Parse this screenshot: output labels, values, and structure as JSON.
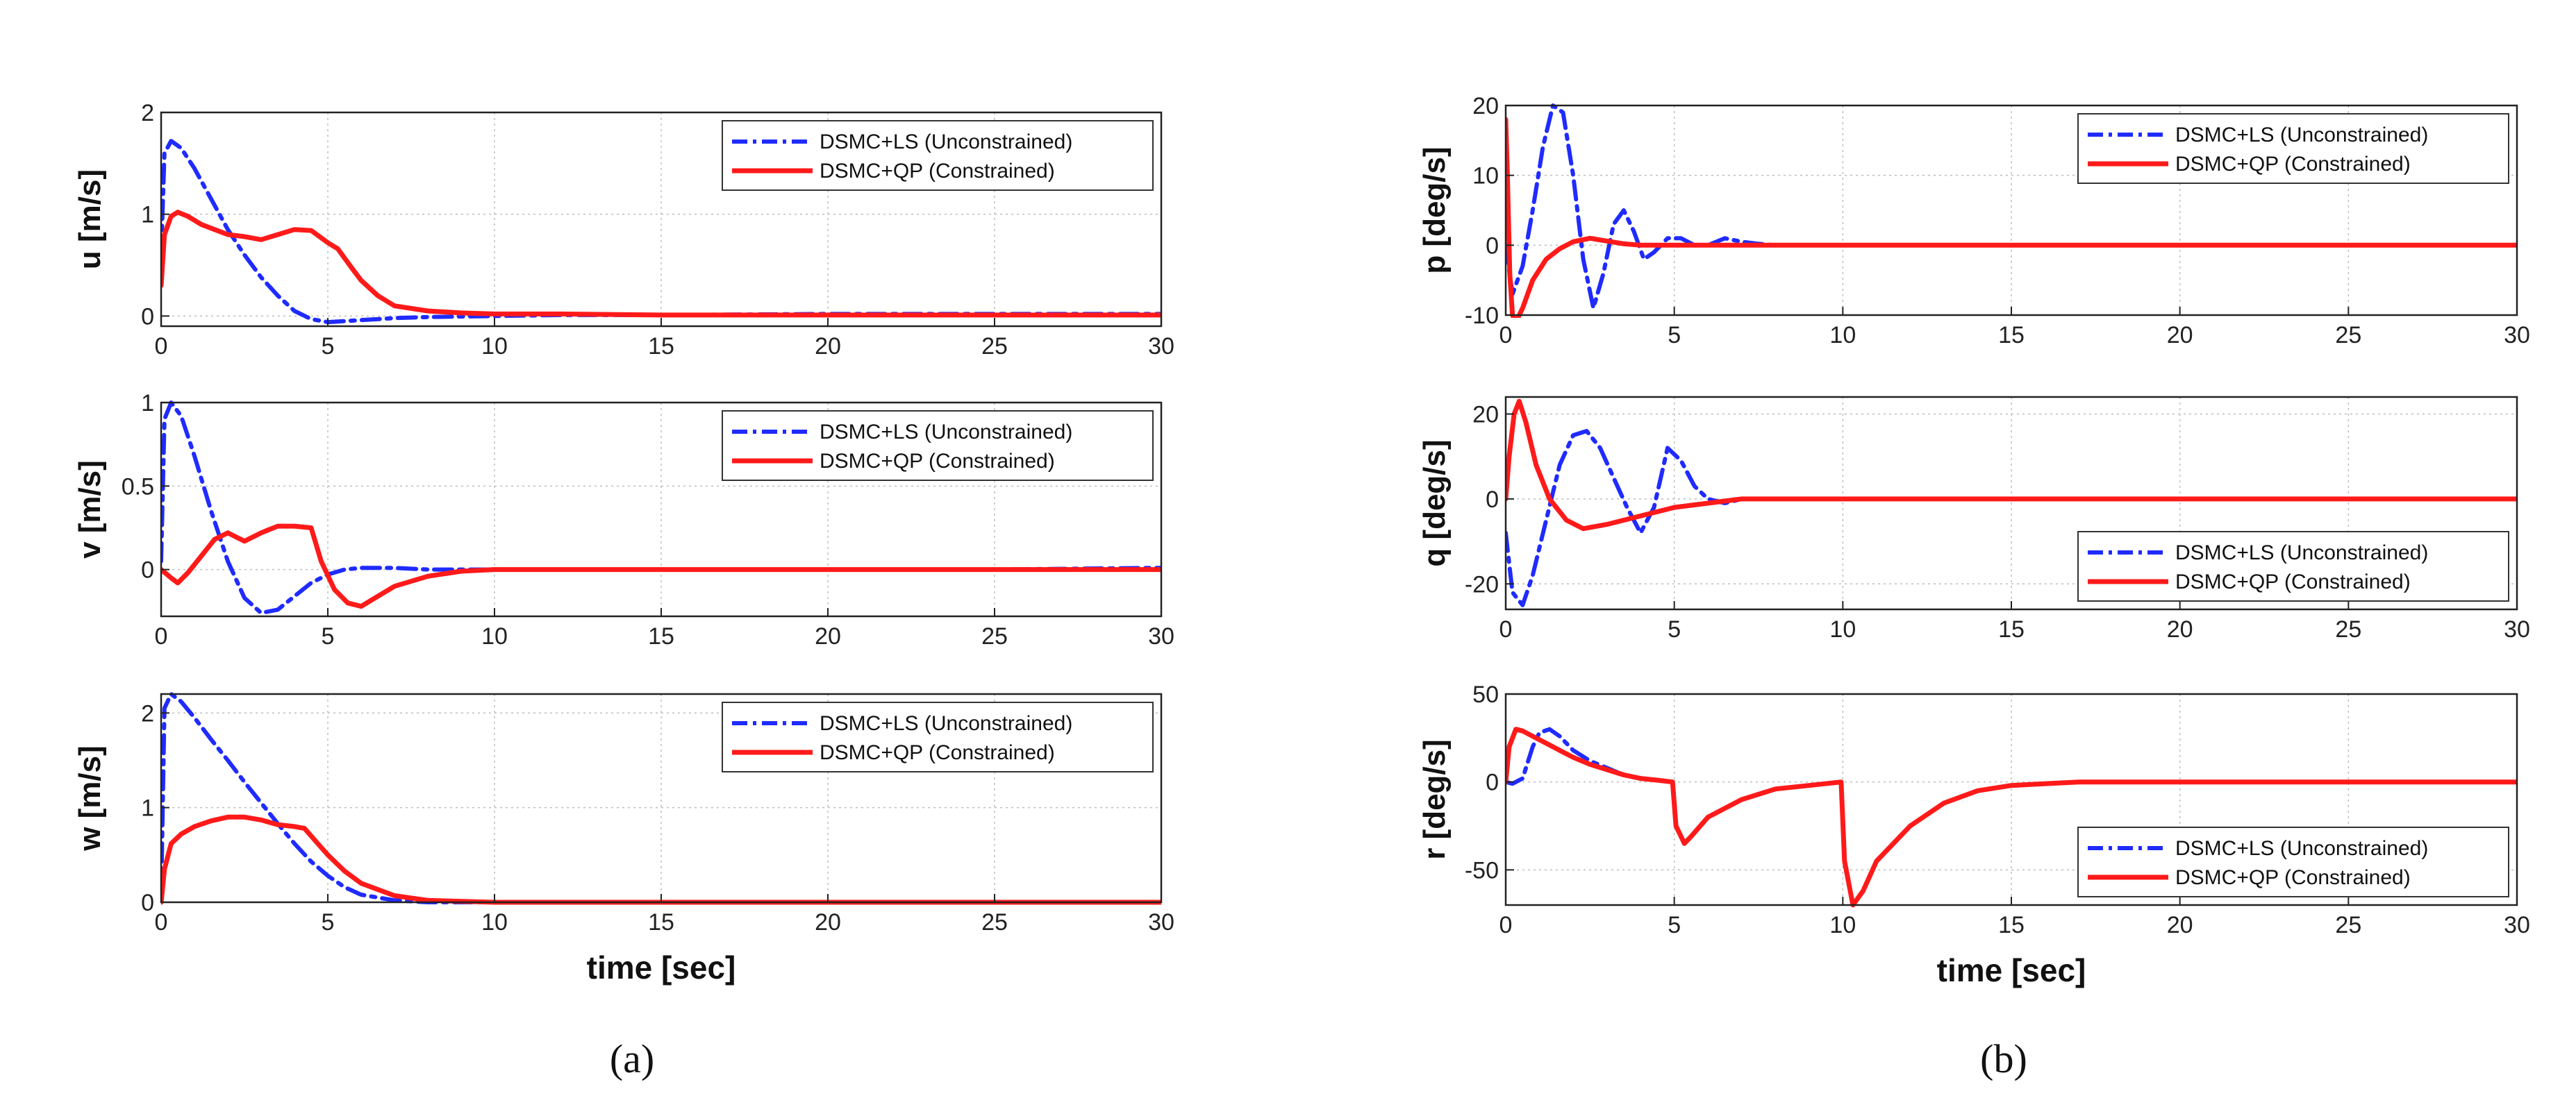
{
  "figure": {
    "panel_labels": [
      {
        "text": "(a)"
      },
      {
        "text": "(b)"
      }
    ]
  },
  "colors": {
    "unconstrained": "#1f2bff",
    "constrained": "#ff1a1a",
    "grid": "#bdbdbd",
    "axis": "#222222"
  },
  "chart_data": [
    {
      "id": "u",
      "type": "line",
      "ylabel": "u [m/s]",
      "xlabel": "",
      "xlim": [
        0,
        30
      ],
      "ylim": [
        -0.1,
        2
      ],
      "xticks": [
        0,
        5,
        10,
        15,
        20,
        25,
        30
      ],
      "yticks": [
        0,
        1,
        2
      ],
      "grid": true,
      "legend_position": "top-right",
      "series": [
        {
          "name": "DSMC+LS (Unconstrained)",
          "style": "dashdot",
          "x": [
            0,
            0.1,
            0.3,
            0.6,
            1.0,
            1.5,
            2.0,
            2.5,
            3.0,
            3.5,
            4.0,
            4.5,
            5.0,
            5.5,
            6,
            7,
            8,
            10,
            12,
            15,
            20,
            25,
            30
          ],
          "y": [
            0.6,
            1.6,
            1.72,
            1.65,
            1.45,
            1.15,
            0.85,
            0.6,
            0.38,
            0.2,
            0.05,
            -0.03,
            -0.06,
            -0.05,
            -0.04,
            -0.02,
            -0.01,
            0.0,
            0.01,
            0.01,
            0.02,
            0.02,
            0.02
          ]
        },
        {
          "name": "DSMC+QP (Constrained)",
          "style": "solid",
          "x": [
            0,
            0.1,
            0.3,
            0.5,
            0.8,
            1.2,
            2.0,
            2.5,
            3.0,
            3.5,
            4.0,
            4.5,
            5.0,
            5.3,
            5.7,
            6.0,
            6.5,
            7.0,
            8.0,
            9.0,
            10,
            12,
            15,
            20,
            25,
            30
          ],
          "y": [
            0.3,
            0.8,
            0.98,
            1.02,
            0.98,
            0.9,
            0.8,
            0.78,
            0.75,
            0.8,
            0.85,
            0.84,
            0.72,
            0.66,
            0.48,
            0.35,
            0.2,
            0.1,
            0.05,
            0.03,
            0.02,
            0.02,
            0.01,
            0.01,
            0.01,
            0.01
          ]
        }
      ]
    },
    {
      "id": "v",
      "type": "line",
      "ylabel": "v [m/s]",
      "xlabel": "",
      "xlim": [
        0,
        30
      ],
      "ylim": [
        -0.28,
        1
      ],
      "xticks": [
        0,
        5,
        10,
        15,
        20,
        25,
        30
      ],
      "yticks": [
        0,
        0.5,
        1
      ],
      "grid": true,
      "legend_position": "top-right",
      "series": [
        {
          "name": "DSMC+LS (Unconstrained)",
          "style": "dashdot",
          "x": [
            0,
            0.1,
            0.3,
            0.6,
            1.0,
            1.5,
            2.0,
            2.5,
            3.0,
            3.5,
            4.0,
            4.5,
            5.0,
            5.5,
            6,
            7,
            8,
            10,
            15,
            20,
            25,
            30
          ],
          "y": [
            0.05,
            0.9,
            1.0,
            0.92,
            0.68,
            0.35,
            0.05,
            -0.17,
            -0.26,
            -0.24,
            -0.16,
            -0.08,
            -0.03,
            0.0,
            0.01,
            0.01,
            0.0,
            0.0,
            0.0,
            0.0,
            0.0,
            0.01
          ]
        },
        {
          "name": "DSMC+QP (Constrained)",
          "style": "solid",
          "x": [
            0,
            0.3,
            0.5,
            0.8,
            1.2,
            1.6,
            2.0,
            2.5,
            3.0,
            3.5,
            4.0,
            4.5,
            4.8,
            5.2,
            5.6,
            6.0,
            6.5,
            7.0,
            8,
            9,
            10,
            15,
            20,
            25,
            30
          ],
          "y": [
            0.0,
            -0.05,
            -0.08,
            -0.02,
            0.08,
            0.18,
            0.22,
            0.17,
            0.22,
            0.26,
            0.26,
            0.25,
            0.05,
            -0.12,
            -0.2,
            -0.22,
            -0.16,
            -0.1,
            -0.04,
            -0.01,
            0.0,
            0.0,
            0.0,
            0.0,
            0.0
          ]
        }
      ]
    },
    {
      "id": "w",
      "type": "line",
      "ylabel": "w [m/s]",
      "xlabel": "time [sec]",
      "xlim": [
        0,
        30
      ],
      "ylim": [
        0,
        2.2
      ],
      "xticks": [
        0,
        5,
        10,
        15,
        20,
        25,
        30
      ],
      "yticks": [
        0,
        1,
        2
      ],
      "grid": true,
      "legend_position": "top-right",
      "series": [
        {
          "name": "DSMC+LS (Unconstrained)",
          "style": "dashdot",
          "x": [
            0,
            0.1,
            0.3,
            0.6,
            1.0,
            1.5,
            2.0,
            2.5,
            3.0,
            3.5,
            4.0,
            4.5,
            5.0,
            5.5,
            6,
            7,
            8,
            10,
            15,
            20,
            25,
            30
          ],
          "y": [
            0.05,
            2.05,
            2.2,
            2.12,
            1.95,
            1.72,
            1.5,
            1.27,
            1.05,
            0.83,
            0.62,
            0.43,
            0.28,
            0.16,
            0.08,
            0.02,
            0.0,
            0.0,
            0.0,
            0.0,
            0.0,
            0.0
          ]
        },
        {
          "name": "DSMC+QP (Constrained)",
          "style": "solid",
          "x": [
            0,
            0.1,
            0.3,
            0.6,
            1.0,
            1.5,
            2.0,
            2.5,
            3.0,
            3.5,
            4.0,
            4.3,
            4.7,
            5.0,
            5.5,
            6,
            7,
            8,
            10,
            15,
            20,
            25,
            30
          ],
          "y": [
            0.0,
            0.35,
            0.62,
            0.72,
            0.8,
            0.86,
            0.9,
            0.9,
            0.87,
            0.82,
            0.8,
            0.78,
            0.62,
            0.5,
            0.33,
            0.2,
            0.07,
            0.02,
            0.0,
            0.0,
            0.0,
            0.0,
            0.0
          ]
        }
      ]
    },
    {
      "id": "p",
      "type": "line",
      "ylabel": "p [deg/s]",
      "xlabel": "",
      "xlim": [
        0,
        30
      ],
      "ylim": [
        -10,
        20
      ],
      "xticks": [
        0,
        5,
        10,
        15,
        20,
        25,
        30
      ],
      "yticks": [
        -10,
        0,
        10,
        20
      ],
      "grid": true,
      "legend_position": "top-right",
      "series": [
        {
          "name": "DSMC+LS (Unconstrained)",
          "style": "dashdot",
          "x": [
            0,
            0.2,
            0.5,
            0.8,
            1.1,
            1.4,
            1.7,
            2.0,
            2.3,
            2.6,
            2.9,
            3.2,
            3.5,
            3.8,
            4.1,
            4.4,
            4.8,
            5.2,
            5.6,
            6.0,
            6.5,
            7.0,
            7.5,
            8,
            10,
            15,
            20,
            25,
            30
          ],
          "y": [
            0,
            -7,
            -3,
            5,
            14,
            20,
            19,
            10,
            -2,
            -9,
            -4,
            3,
            5,
            2,
            -2,
            -1,
            1,
            1,
            0,
            0,
            1,
            0.5,
            0.2,
            0,
            0,
            0,
            0,
            0,
            0
          ]
        },
        {
          "name": "DSMC+QP (Constrained)",
          "style": "solid",
          "x": [
            0,
            0.05,
            0.12,
            0.2,
            0.3,
            0.5,
            0.8,
            1.2,
            1.6,
            2.0,
            2.5,
            3.0,
            3.5,
            4.0,
            5,
            6,
            8,
            10,
            15,
            20,
            25,
            30
          ],
          "y": [
            18,
            10,
            -4,
            -10,
            -11,
            -9,
            -5,
            -2,
            -0.5,
            0.5,
            1,
            0.6,
            0.2,
            0,
            0,
            0,
            0,
            0,
            0,
            0,
            0,
            0
          ]
        }
      ]
    },
    {
      "id": "q",
      "type": "line",
      "ylabel": "q [deg/s]",
      "xlabel": "",
      "xlim": [
        0,
        30
      ],
      "ylim": [
        -26,
        24
      ],
      "xticks": [
        0,
        5,
        10,
        15,
        20,
        25,
        30
      ],
      "yticks": [
        -20,
        0,
        20
      ],
      "grid": true,
      "legend_position": "bottom-right",
      "series": [
        {
          "name": "DSMC+LS (Unconstrained)",
          "style": "dashdot",
          "x": [
            0,
            0.2,
            0.5,
            0.8,
            1.2,
            1.6,
            2.0,
            2.4,
            2.8,
            3.2,
            3.6,
            4.0,
            4.4,
            4.8,
            5.2,
            5.6,
            6.0,
            6.5,
            7,
            8,
            10,
            15,
            20,
            25,
            30
          ],
          "y": [
            -8,
            -22,
            -25,
            -18,
            -5,
            8,
            15,
            16,
            12,
            5,
            -2,
            -8,
            -2,
            12,
            9,
            3,
            0,
            -1,
            0,
            0,
            0,
            0,
            0,
            0,
            0
          ]
        },
        {
          "name": "DSMC+QP (Constrained)",
          "style": "solid",
          "x": [
            0,
            0.1,
            0.25,
            0.4,
            0.6,
            0.9,
            1.3,
            1.8,
            2.3,
            3.0,
            3.5,
            4.0,
            5.0,
            6.0,
            7.0,
            8.0,
            10,
            15,
            20,
            25,
            30
          ],
          "y": [
            0,
            10,
            20,
            23,
            18,
            8,
            0,
            -5,
            -7,
            -6,
            -5,
            -4,
            -2,
            -1,
            0,
            0,
            0,
            0,
            0,
            0,
            0
          ]
        }
      ]
    },
    {
      "id": "r",
      "type": "line",
      "ylabel": "r [deg/s]",
      "xlabel": "time [sec]",
      "xlim": [
        0,
        30
      ],
      "ylim": [
        -70,
        50
      ],
      "xticks": [
        0,
        5,
        10,
        15,
        20,
        25,
        30
      ],
      "yticks": [
        -50,
        0,
        50
      ],
      "grid": true,
      "legend_position": "bottom-right",
      "series": [
        {
          "name": "DSMC+LS (Unconstrained)",
          "style": "dashdot",
          "x": [
            0,
            0.2,
            0.5,
            0.8,
            1.0,
            1.3,
            1.6,
            2.0,
            2.5,
            3.0,
            3.5,
            4.0,
            4.5,
            4.95,
            5.05,
            5.3,
            5.5,
            6.0,
            7.0,
            8.0,
            9.0,
            9.95,
            10.05,
            10.3,
            10.6,
            11.0,
            12.0,
            13.0,
            14.0,
            15,
            17,
            20,
            25,
            30
          ],
          "y": [
            0,
            -1,
            2,
            20,
            28,
            30,
            26,
            18,
            12,
            8,
            4,
            2,
            1,
            0,
            -25,
            -35,
            -31,
            -20,
            -10,
            -4,
            -2,
            0,
            -45,
            -70,
            -62,
            -45,
            -25,
            -12,
            -5,
            -2,
            0,
            0,
            0,
            0
          ]
        },
        {
          "name": "DSMC+QP (Constrained)",
          "style": "solid",
          "x": [
            0,
            0.1,
            0.3,
            0.5,
            0.8,
            1.2,
            1.6,
            2.0,
            2.5,
            3.0,
            3.5,
            4.0,
            4.5,
            4.95,
            5.05,
            5.3,
            5.5,
            6.0,
            7.0,
            8.0,
            9.0,
            9.95,
            10.05,
            10.3,
            10.6,
            11.0,
            12.0,
            13.0,
            14.0,
            15,
            17,
            20,
            25,
            30
          ],
          "y": [
            0,
            20,
            30,
            29,
            26,
            22,
            18,
            14,
            10,
            7,
            4,
            2,
            1,
            0,
            -25,
            -35,
            -31,
            -20,
            -10,
            -4,
            -2,
            0,
            -45,
            -70,
            -62,
            -45,
            -25,
            -12,
            -5,
            -2,
            0,
            0,
            0,
            0
          ]
        }
      ]
    }
  ]
}
